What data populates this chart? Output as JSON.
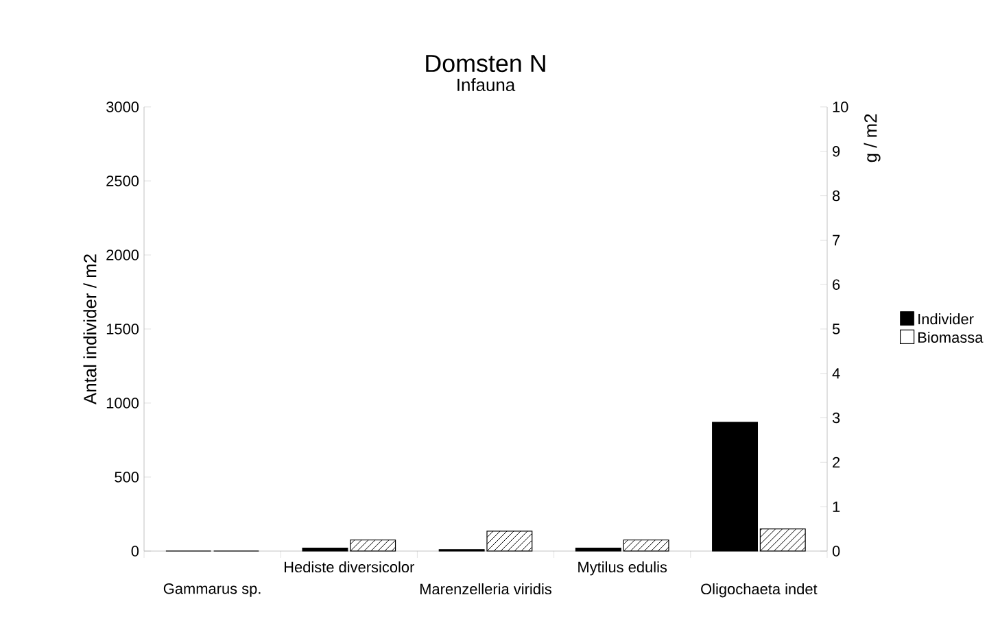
{
  "chart_data": {
    "type": "bar",
    "title": "Domsten N",
    "subtitle": "Infauna",
    "ylabel": "Antal individer / m2",
    "y2label": "g / m2",
    "categories": [
      "Gammarus sp.",
      "Hediste diversicolor",
      "Marenzelleria viridis",
      "Mytilus edulis",
      "Oligochaeta indet"
    ],
    "series": [
      {
        "name": "Individer",
        "color": "#000000",
        "values": [
          0,
          20,
          10,
          20,
          870
        ]
      },
      {
        "name": "Biomassa",
        "color": "#000000",
        "axis": "y2",
        "values": [
          0,
          0.25,
          0.45,
          0.25,
          0.5
        ]
      }
    ],
    "ylim": [
      0,
      3000
    ],
    "yticks": [
      0,
      500,
      1000,
      1500,
      2000,
      2500,
      3000
    ],
    "y2lim": [
      0,
      10
    ],
    "y2ticks": [
      0,
      1,
      2,
      3,
      4,
      5,
      6,
      7,
      8,
      9,
      10
    ],
    "legend": "right",
    "grid": false
  }
}
